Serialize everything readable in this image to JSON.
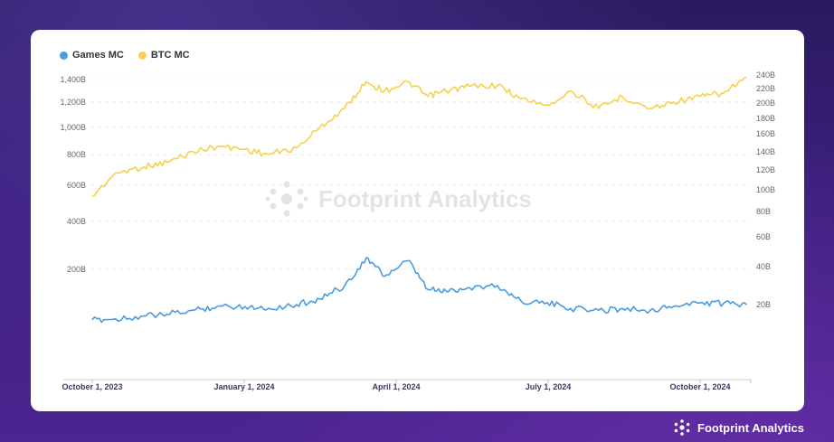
{
  "legend": [
    {
      "label": "Games MC",
      "color": "#4a9be0"
    },
    {
      "label": "BTC MC",
      "color": "#f5d24a"
    }
  ],
  "watermark": "Footprint Analytics",
  "brand": "Footprint Analytics",
  "chart_data": {
    "type": "line",
    "x": [
      "2023-10-01",
      "2023-10-15",
      "2023-11-01",
      "2023-11-15",
      "2023-12-01",
      "2023-12-15",
      "2024-01-01",
      "2024-01-15",
      "2024-02-01",
      "2024-02-15",
      "2024-03-01",
      "2024-03-14",
      "2024-03-25",
      "2024-04-08",
      "2024-04-20",
      "2024-05-01",
      "2024-05-15",
      "2024-06-01",
      "2024-06-15",
      "2024-07-01",
      "2024-07-15",
      "2024-08-01",
      "2024-08-15",
      "2024-09-01",
      "2024-09-15",
      "2024-10-01",
      "2024-10-15",
      "2024-10-29"
    ],
    "x_ticks": [
      "October 1, 2023",
      "January 1, 2024",
      "April 1, 2024",
      "July 1, 2024",
      "October 1, 2024"
    ],
    "left_axis_ticks": [
      "1,400B",
      "1,200B",
      "1,000B",
      "800B",
      "600B",
      "400B",
      "200B"
    ],
    "right_axis_ticks": [
      "240B",
      "220B",
      "200B",
      "180B",
      "160B",
      "140B",
      "120B",
      "100B",
      "80B",
      "60B",
      "40B",
      "20B"
    ],
    "series": [
      {
        "name": "BTC MC",
        "axis": "left",
        "color": "#f5d24a",
        "values": [
          540,
          680,
          720,
          750,
          820,
          860,
          840,
          800,
          850,
          1000,
          1150,
          1380,
          1300,
          1380,
          1250,
          1300,
          1340,
          1350,
          1230,
          1180,
          1300,
          1150,
          1250,
          1150,
          1200,
          1250,
          1280,
          1420
        ]
      },
      {
        "name": "Games MC",
        "axis": "right",
        "color": "#4a9be0",
        "values": [
          12,
          12.5,
          14,
          15,
          17,
          19,
          19,
          18,
          20,
          23,
          30,
          46,
          35,
          44,
          28,
          27,
          29,
          30,
          22,
          21,
          18,
          17,
          18,
          17,
          19,
          21,
          20.5,
          20
        ]
      }
    ]
  }
}
